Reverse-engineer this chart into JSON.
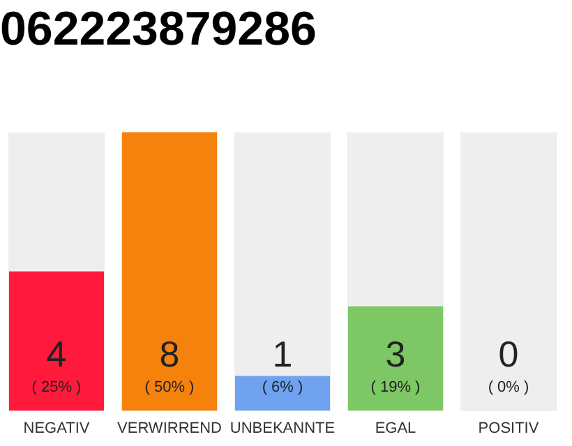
{
  "chart_data": {
    "type": "bar",
    "title": "062223879286",
    "categories": [
      "NEGATIV",
      "VERWIRREND",
      "UNBEKANNTE",
      "EGAL",
      "POSITIV"
    ],
    "values": [
      4,
      8,
      1,
      3,
      0
    ],
    "colors": [
      "#ff1a3c",
      "#f5820d",
      "#6fa3f0",
      "#7dc865",
      "#bdbdbd"
    ],
    "data_labels": true,
    "annotations": [
      {
        "text": "( 25% )",
        "x": "NEGATIV",
        "y": 0
      },
      {
        "text": "( 50% )",
        "x": "VERWIRREND",
        "y": 0
      },
      {
        "text": "( 6% )",
        "x": "UNBEKANNTE",
        "y": 0
      },
      {
        "text": "( 19% )",
        "x": "EGAL",
        "y": 0
      },
      {
        "text": "( 0% )",
        "x": "POSITIV",
        "y": 0
      }
    ],
    "tick_labels": "x",
    "grid": false,
    "legend": false
  }
}
